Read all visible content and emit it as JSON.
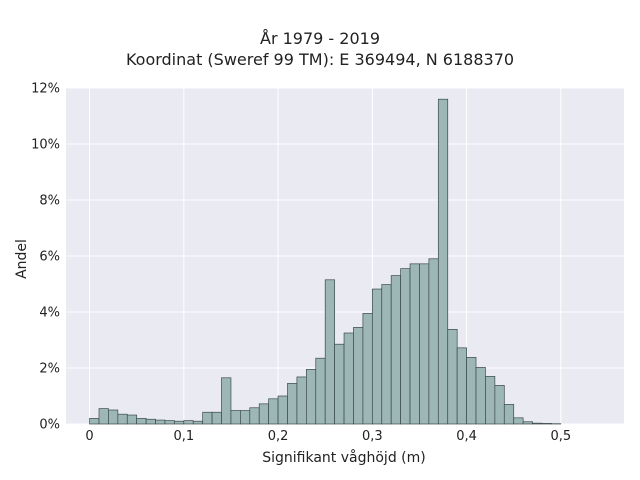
{
  "chart_data": {
    "type": "bar",
    "title_lines": [
      "År 1979 - 2019",
      "Koordinat (Sweref 99 TM): E 369494, N 6188370"
    ],
    "xlabel": "Signifikant våghöjd (m)",
    "ylabel": "Andel",
    "xlim": [
      -0.025,
      0.567
    ],
    "ylim": [
      0,
      12
    ],
    "x_ticks": [
      {
        "value": 0,
        "label": "0"
      },
      {
        "value": 0.1,
        "label": "0,1"
      },
      {
        "value": 0.2,
        "label": "0,2"
      },
      {
        "value": 0.3,
        "label": "0,3"
      },
      {
        "value": 0.4,
        "label": "0,4"
      },
      {
        "value": 0.5,
        "label": "0,5"
      }
    ],
    "y_ticks": [
      {
        "value": 0,
        "label": "0%"
      },
      {
        "value": 2,
        "label": "2%"
      },
      {
        "value": 4,
        "label": "4%"
      },
      {
        "value": 6,
        "label": "6%"
      },
      {
        "value": 8,
        "label": "8%"
      },
      {
        "value": 10,
        "label": "10%"
      },
      {
        "value": 12,
        "label": "12%"
      }
    ],
    "grid": true,
    "bin_start": 0,
    "bin_width": 0.01,
    "values": [
      0.2,
      0.55,
      0.5,
      0.35,
      0.32,
      0.2,
      0.17,
      0.14,
      0.12,
      0.1,
      0.12,
      0.1,
      0.42,
      0.42,
      1.65,
      0.48,
      0.48,
      0.58,
      0.72,
      0.9,
      1.0,
      1.45,
      1.68,
      1.95,
      2.35,
      5.15,
      2.85,
      3.25,
      3.45,
      3.95,
      4.82,
      4.98,
      5.3,
      5.55,
      5.72,
      5.72,
      5.9,
      11.6,
      3.38,
      2.72,
      2.38,
      2.02,
      1.7,
      1.38,
      0.7,
      0.22,
      0.08,
      0.03,
      0.02,
      0.01
    ],
    "colors": {
      "bar_fill": "#9db6b6",
      "bar_stroke": "#3b4a4a",
      "plot_bg": "#eaeaf2",
      "grid": "#ffffff"
    }
  }
}
